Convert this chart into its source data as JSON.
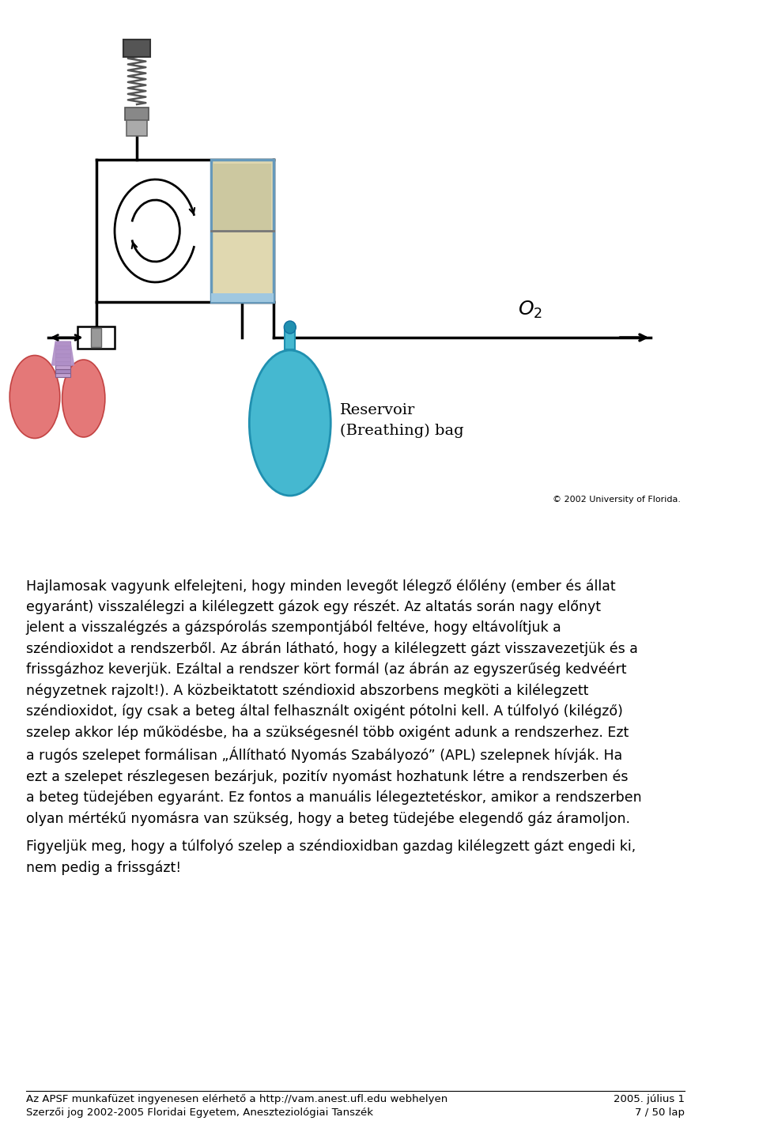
{
  "background_color": "#ffffff",
  "text_block1": "Hajlamosak vagyunk elfelejteni, hogy minden levegőt lélegző élőlény (ember és állat\negyaránt) visszalélegzi a kilélegzett gázok egy részét. Az altatás során nagy előnyt\njelent a visszalégzés a gázspórolás szempontjából feltéve, hogy eltávolítjuk a\nszéndioxidot a rendszerből. Az ábrán látható, hogy a kilélegzett gázt visszavezetjük és a\nfrissgázhoz keverjük. Ezáltal a rendszer kört formál (az ábrán az egyszerűség kedvéért\nnégyzetnek rajzolt!). A közbeiktatott széndioxid abszorbens megköti a kilélegzett\nszéndioxidot, így csak a beteg által felhasznált oxigént pótolni kell. A túlfolyó (kilégző)\nszelep akkor lép működésbe, ha a szükségesnél több oxigént adunk a rendszerhez. Ezt\na rugós szelepet formálisan „Állítható Nyomás Szabályozó” (APL) szelepnek hívják. Ha\nezt a szelepet részlegesen bezárjuk, pozitív nyomást hozhatunk létre a rendszerben és\na beteg tüdejében egyaránt. Ez fontos a manuális lélegeztetéskor, amikor a rendszerben\nolyan mértékű nyomásra van szükség, hogy a beteg tüdejébe elegendő gáz áramoljon.",
  "text_block2": "Figyeljük meg, hogy a túlfolyó szelep a széndioxidban gazdag kilélegzett gázt engedi ki,\nnem pedig a frissgázt!",
  "copyright_text": "© 2002 University of Florida.",
  "reservoir_label": "Reservoir\n(Breathing) bag",
  "footer_left": "Az APSF munkafüzet ingyenesen elérhető a http://vam.anest.ufl.edu webhelyen\nSzerzői jog 2002-2005 Floridai Egyetem, Aneszteziológiai Tanszék",
  "footer_right": "2005. július 1\n7 / 50 lap"
}
